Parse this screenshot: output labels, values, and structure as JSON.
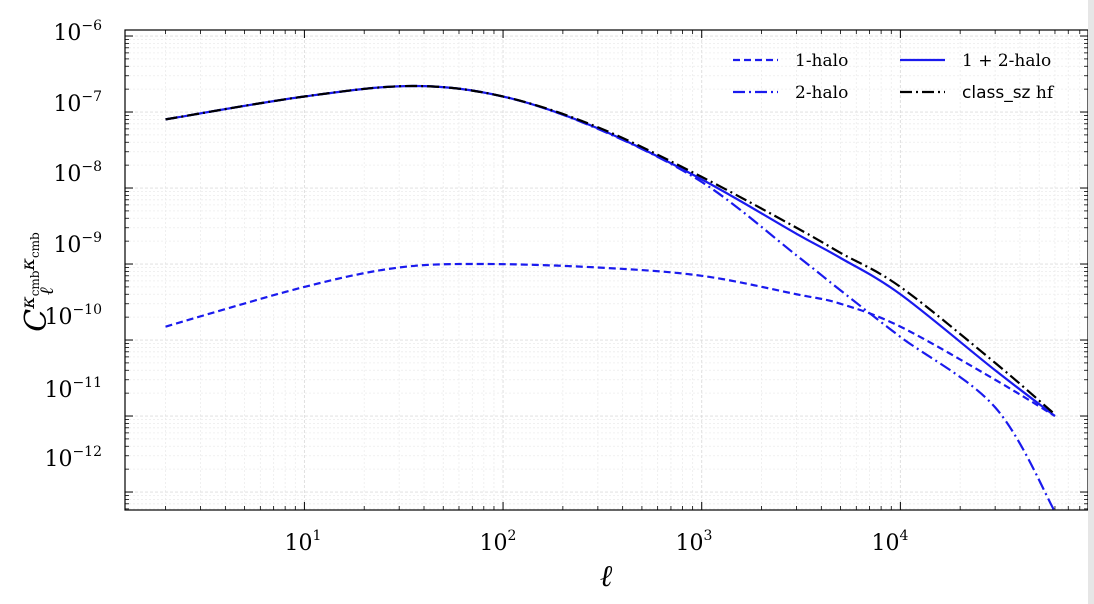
{
  "chart_data": {
    "type": "line",
    "xscale": "log",
    "yscale": "log",
    "xlim": [
      1.25,
      88000
    ],
    "ylim": [
      5.8e-13,
      1.2e-06
    ],
    "xlabel": "ℓ",
    "ylabel": "C_ℓ^{κ_cmb κ_cmb}",
    "grid": true,
    "legend_placement": "top-right",
    "x_ticks": [
      {
        "value": 10,
        "base": "10",
        "exp": "1"
      },
      {
        "value": 100,
        "base": "10",
        "exp": "2"
      },
      {
        "value": 1000,
        "base": "10",
        "exp": "3"
      },
      {
        "value": 10000,
        "base": "10",
        "exp": "4"
      }
    ],
    "y_ticks": [
      {
        "value": 1e-12,
        "base": "10",
        "exp": "−12"
      },
      {
        "value": 1e-11,
        "base": "10",
        "exp": "−11"
      },
      {
        "value": 1e-10,
        "base": "10",
        "exp": "−10"
      },
      {
        "value": 1e-09,
        "base": "10",
        "exp": "−9"
      },
      {
        "value": 1e-08,
        "base": "10",
        "exp": "−8"
      },
      {
        "value": 1e-07,
        "base": "10",
        "exp": "−7"
      },
      {
        "value": 1e-06,
        "base": "10",
        "exp": "−6"
      }
    ],
    "series": [
      {
        "name": "1-halo",
        "color": "#1a1aee",
        "dash": "dashed",
        "x": [
          2,
          10,
          30,
          80,
          300,
          1000,
          3000,
          5000,
          10000,
          30000,
          60000
        ],
        "y": [
          1.5e-10,
          5e-10,
          9e-10,
          1e-09,
          9e-10,
          7e-10,
          4e-10,
          3e-10,
          1.5e-10,
          3e-11,
          1e-11
        ]
      },
      {
        "name": "2-halo",
        "color": "#1a1aee",
        "dash": "dashdot",
        "x": [
          2,
          10,
          35,
          100,
          300,
          1000,
          3000,
          5000,
          10000,
          30000,
          60000
        ],
        "y": [
          8e-08,
          1.6e-07,
          2.2e-07,
          1.6e-07,
          6e-08,
          1.2e-08,
          1.3e-09,
          4.5e-10,
          1.1e-10,
          1.3e-11,
          5.5e-13
        ]
      },
      {
        "name": "1 + 2-halo",
        "color": "#1a1aee",
        "dash": "solid",
        "x": [
          2,
          10,
          35,
          100,
          300,
          1000,
          3000,
          5000,
          10000,
          30000,
          60000
        ],
        "y": [
          8e-08,
          1.6e-07,
          2.2e-07,
          1.6e-07,
          6.1e-08,
          1.3e-08,
          2.5e-09,
          1.2e-09,
          4e-10,
          4e-11,
          1e-11
        ]
      },
      {
        "name": "class_sz hf",
        "color": "#000000",
        "dash": "dashdot",
        "x": [
          2,
          10,
          35,
          100,
          300,
          1000,
          3000,
          5000,
          10000,
          30000,
          60000
        ],
        "y": [
          8e-08,
          1.6e-07,
          2.2e-07,
          1.6e-07,
          6.3e-08,
          1.4e-08,
          3e-09,
          1.4e-09,
          5e-10,
          5e-11,
          1.05e-11
        ]
      }
    ]
  },
  "legend": {
    "one_halo": "1-halo",
    "two_halo": "2-halo",
    "one_plus_two_main": "1 + 2-halo",
    "class_sz_part": "class_sz",
    "class_sz_suffix": " hf"
  }
}
